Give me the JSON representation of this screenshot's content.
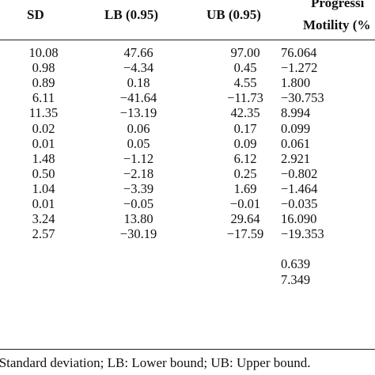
{
  "table": {
    "headers": {
      "sd": "SD",
      "lb": "LB (0.95)",
      "ub": "UB (0.95)",
      "pm_line1": "Progressi",
      "pm_line2": "Motility (%"
    },
    "rows": [
      {
        "sd": "10.08",
        "lb": "47.66",
        "ub": "97.00",
        "pm": "76.064"
      },
      {
        "sd": "0.98",
        "lb": "−4.34",
        "ub": "0.45",
        "pm": "−1.272"
      },
      {
        "sd": "0.89",
        "lb": "0.18",
        "ub": "4.55",
        "pm": "1.800"
      },
      {
        "sd": "6.11",
        "lb": "−41.64",
        "ub": "−11.73",
        "pm": "−30.753"
      },
      {
        "sd": "11.35",
        "lb": "−13.19",
        "ub": "42.35",
        "pm": "8.994"
      },
      {
        "sd": "0.02",
        "lb": "0.06",
        "ub": "0.17",
        "pm": "0.099"
      },
      {
        "sd": "0.01",
        "lb": "0.05",
        "ub": "0.09",
        "pm": "0.061"
      },
      {
        "sd": "1.48",
        "lb": "−1.12",
        "ub": "6.12",
        "pm": "2.921"
      },
      {
        "sd": "0.50",
        "lb": "−2.18",
        "ub": "0.25",
        "pm": "−0.802"
      },
      {
        "sd": "1.04",
        "lb": "−3.39",
        "ub": "1.69",
        "pm": "−1.464"
      },
      {
        "sd": "0.01",
        "lb": "−0.05",
        "ub": "−0.01",
        "pm": "−0.035"
      },
      {
        "sd": "3.24",
        "lb": "13.80",
        "ub": "29.64",
        "pm": "16.090"
      },
      {
        "sd": "2.57",
        "lb": "−30.19",
        "ub": "−17.59",
        "pm": "−19.353"
      },
      {
        "sd": "",
        "lb": "",
        "ub": "",
        "pm": ""
      },
      {
        "sd": "",
        "lb": "",
        "ub": "",
        "pm": "0.639"
      },
      {
        "sd": "",
        "lb": "",
        "ub": "",
        "pm": "7.349"
      }
    ]
  },
  "footnote": "SD: Standard deviation; LB: Lower bound; UB: Upper bound."
}
